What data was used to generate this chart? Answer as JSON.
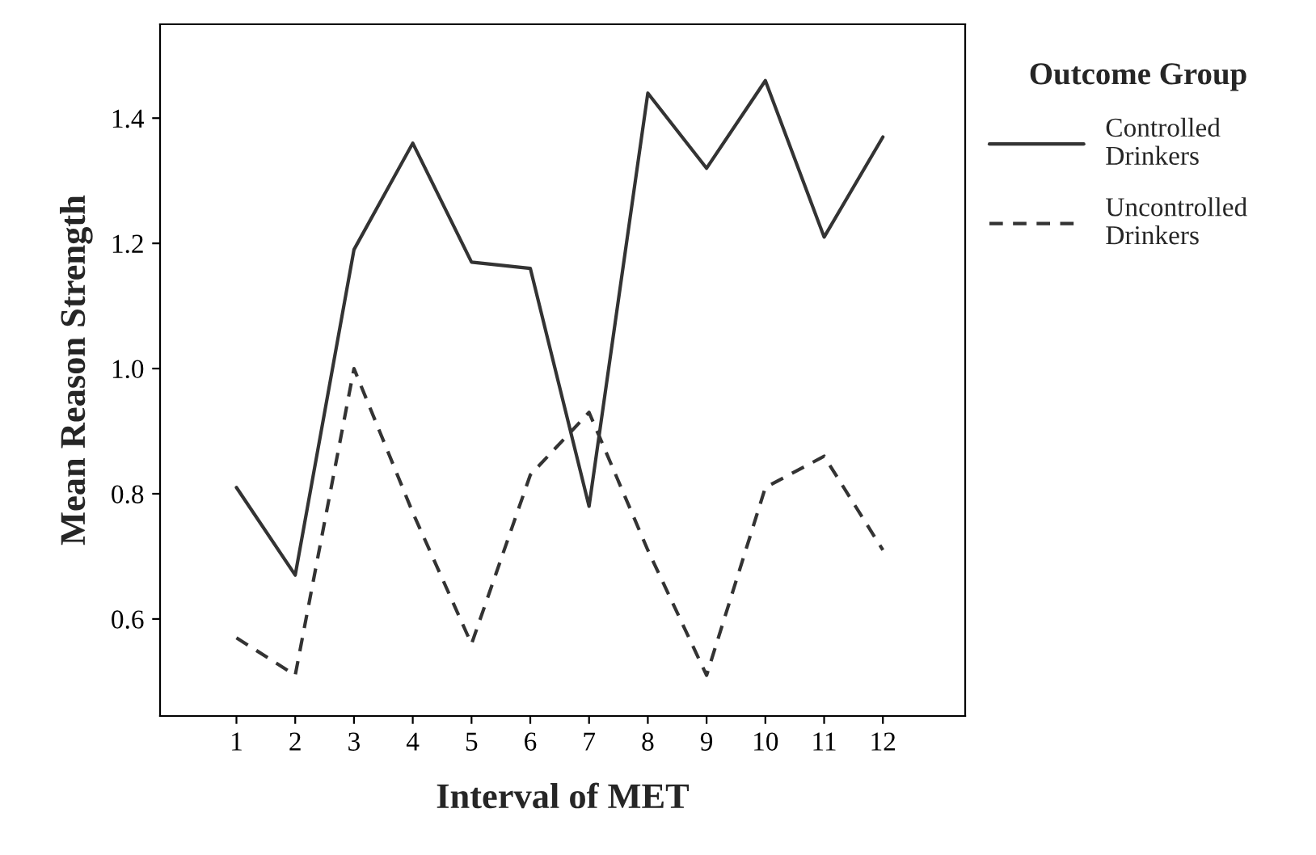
{
  "chart_data": {
    "type": "line",
    "xlabel": "Interval of MET",
    "ylabel": "Mean Reason Strength",
    "legend_title": "Outcome Group",
    "x": [
      1,
      2,
      3,
      4,
      5,
      6,
      7,
      8,
      9,
      10,
      11,
      12
    ],
    "series": [
      {
        "name": "Controlled\nDrinkers",
        "color": "#333333",
        "line_style": "solid",
        "values": [
          0.81,
          0.67,
          1.19,
          1.36,
          1.17,
          1.16,
          0.78,
          1.44,
          1.32,
          1.46,
          1.21,
          1.37
        ]
      },
      {
        "name": "Uncontrolled\nDrinkers",
        "color": "#333333",
        "line_style": "dashed",
        "values": [
          0.57,
          0.51,
          1.0,
          0.77,
          0.56,
          0.83,
          0.93,
          0.71,
          0.51,
          0.81,
          0.86,
          0.71
        ]
      }
    ],
    "xlim": [
      -0.3,
      13.4
    ],
    "xticks": [
      1,
      2,
      3,
      4,
      5,
      6,
      7,
      8,
      9,
      10,
      11,
      12
    ],
    "ylim": [
      0.445,
      1.55
    ],
    "yticks": [
      {
        "value": 0.6,
        "label": "0.6"
      },
      {
        "value": 0.8,
        "label": "0.8"
      },
      {
        "value": 1.0,
        "label": "1.0"
      },
      {
        "value": 1.2,
        "label": "1.2"
      },
      {
        "value": 1.4,
        "label": "1.4"
      }
    ],
    "grid": false,
    "legend": "top right",
    "marker": "none"
  }
}
